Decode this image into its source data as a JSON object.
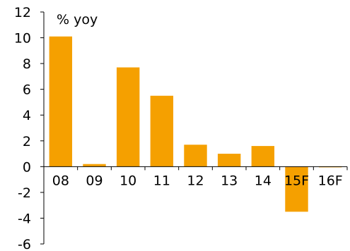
{
  "chart_data": {
    "type": "bar",
    "title": "",
    "ylabel": "% yoy",
    "xlabel": "",
    "categories": [
      "08",
      "09",
      "10",
      "11",
      "12",
      "13",
      "14",
      "15F",
      "16F"
    ],
    "values": [
      10.1,
      0.2,
      7.7,
      5.5,
      1.7,
      1.0,
      1.6,
      -3.5,
      0.0
    ],
    "ylim": [
      -6,
      12
    ],
    "yticks": [
      -6,
      -4,
      -2,
      0,
      2,
      4,
      6,
      8,
      10,
      12
    ],
    "grid": false,
    "legend": "none",
    "bar_color": "#f5a000"
  }
}
